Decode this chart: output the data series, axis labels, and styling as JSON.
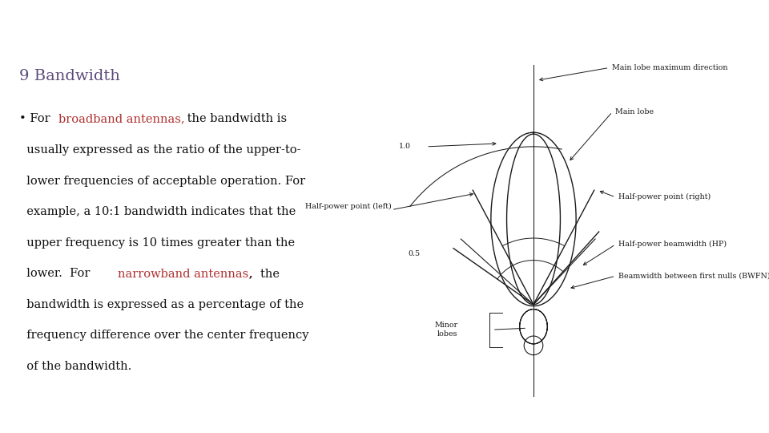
{
  "title": "9 Bandwidth",
  "title_color": "#5b4a7a",
  "title_fontsize": 14,
  "bg_color": "#ffffff",
  "header_dark": "#3d3d52",
  "header_teal": "#3a8a8a",
  "header_light": "#8aabbc",
  "highlight_color": "#b03030",
  "text_color": "#111111",
  "text_fontsize": 10.5,
  "diagram_color": "#1a1a1a",
  "diagram_label_fontsize": 6.8,
  "diagram_labels": {
    "main_lobe_max": "Main lobe maximum direction",
    "main_lobe": "Main lobe",
    "half_power_left": "Half-power point (left)",
    "half_power_right": "Half-power point (right)",
    "half_power_bw": "Half-power beamwidth (HP)",
    "bwfn": "Beamwidth between first nulls (BWFN)",
    "minor_lobes": "Minor\nlobes",
    "val_10": "1.0",
    "val_05": "0.5"
  }
}
